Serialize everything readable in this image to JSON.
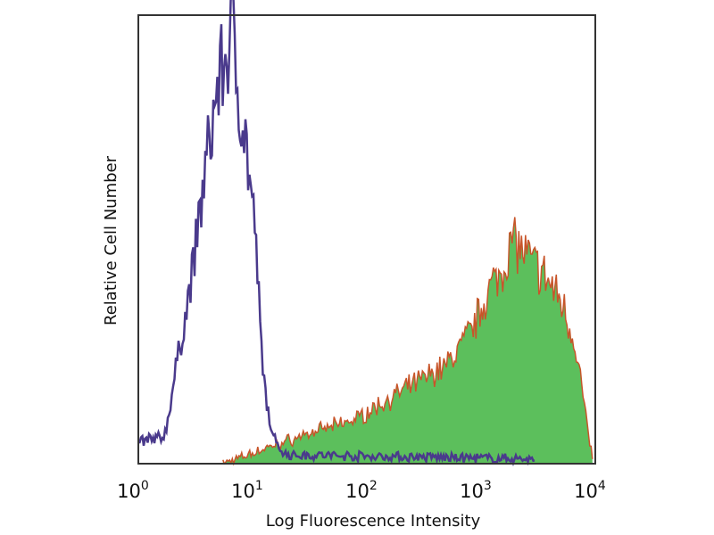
{
  "chart_data": {
    "type": "area",
    "xlabel": "Log Fluorescence Intensity",
    "ylabel": "Relative Cell Number",
    "x_scale": "log",
    "xlim": [
      1,
      10000
    ],
    "ylim": [
      0,
      100
    ],
    "x_ticks": [
      {
        "base": "10",
        "exp": "0"
      },
      {
        "base": "10",
        "exp": "1"
      },
      {
        "base": "10",
        "exp": "2"
      },
      {
        "base": "10",
        "exp": "3"
      },
      {
        "base": "10",
        "exp": "4"
      }
    ],
    "grid": false,
    "series": [
      {
        "style": "outline",
        "color": "#4a3a8c",
        "x": [
          1,
          1.7,
          2.24,
          2.95,
          3.9,
          5.0,
          6.0,
          6.6,
          7.2,
          8.7,
          10.5,
          12.3,
          14.8,
          19.5,
          3000
        ],
        "y": [
          5,
          6,
          24,
          42,
          66,
          85,
          91,
          98,
          87,
          72,
          52,
          20,
          6,
          2,
          1
        ]
      },
      {
        "style": "filled",
        "color": "#5cbf5c",
        "edge_color": "#c8552a",
        "x": [
          5.5,
          19.5,
          81,
          200,
          500,
          850,
          1120,
          1450,
          1900,
          2500,
          3550,
          5100,
          6800,
          8100,
          9550
        ],
        "y": [
          0,
          5,
          10,
          16,
          22,
          30,
          38,
          42,
          50,
          46,
          42,
          36,
          26,
          12,
          0
        ]
      }
    ]
  }
}
